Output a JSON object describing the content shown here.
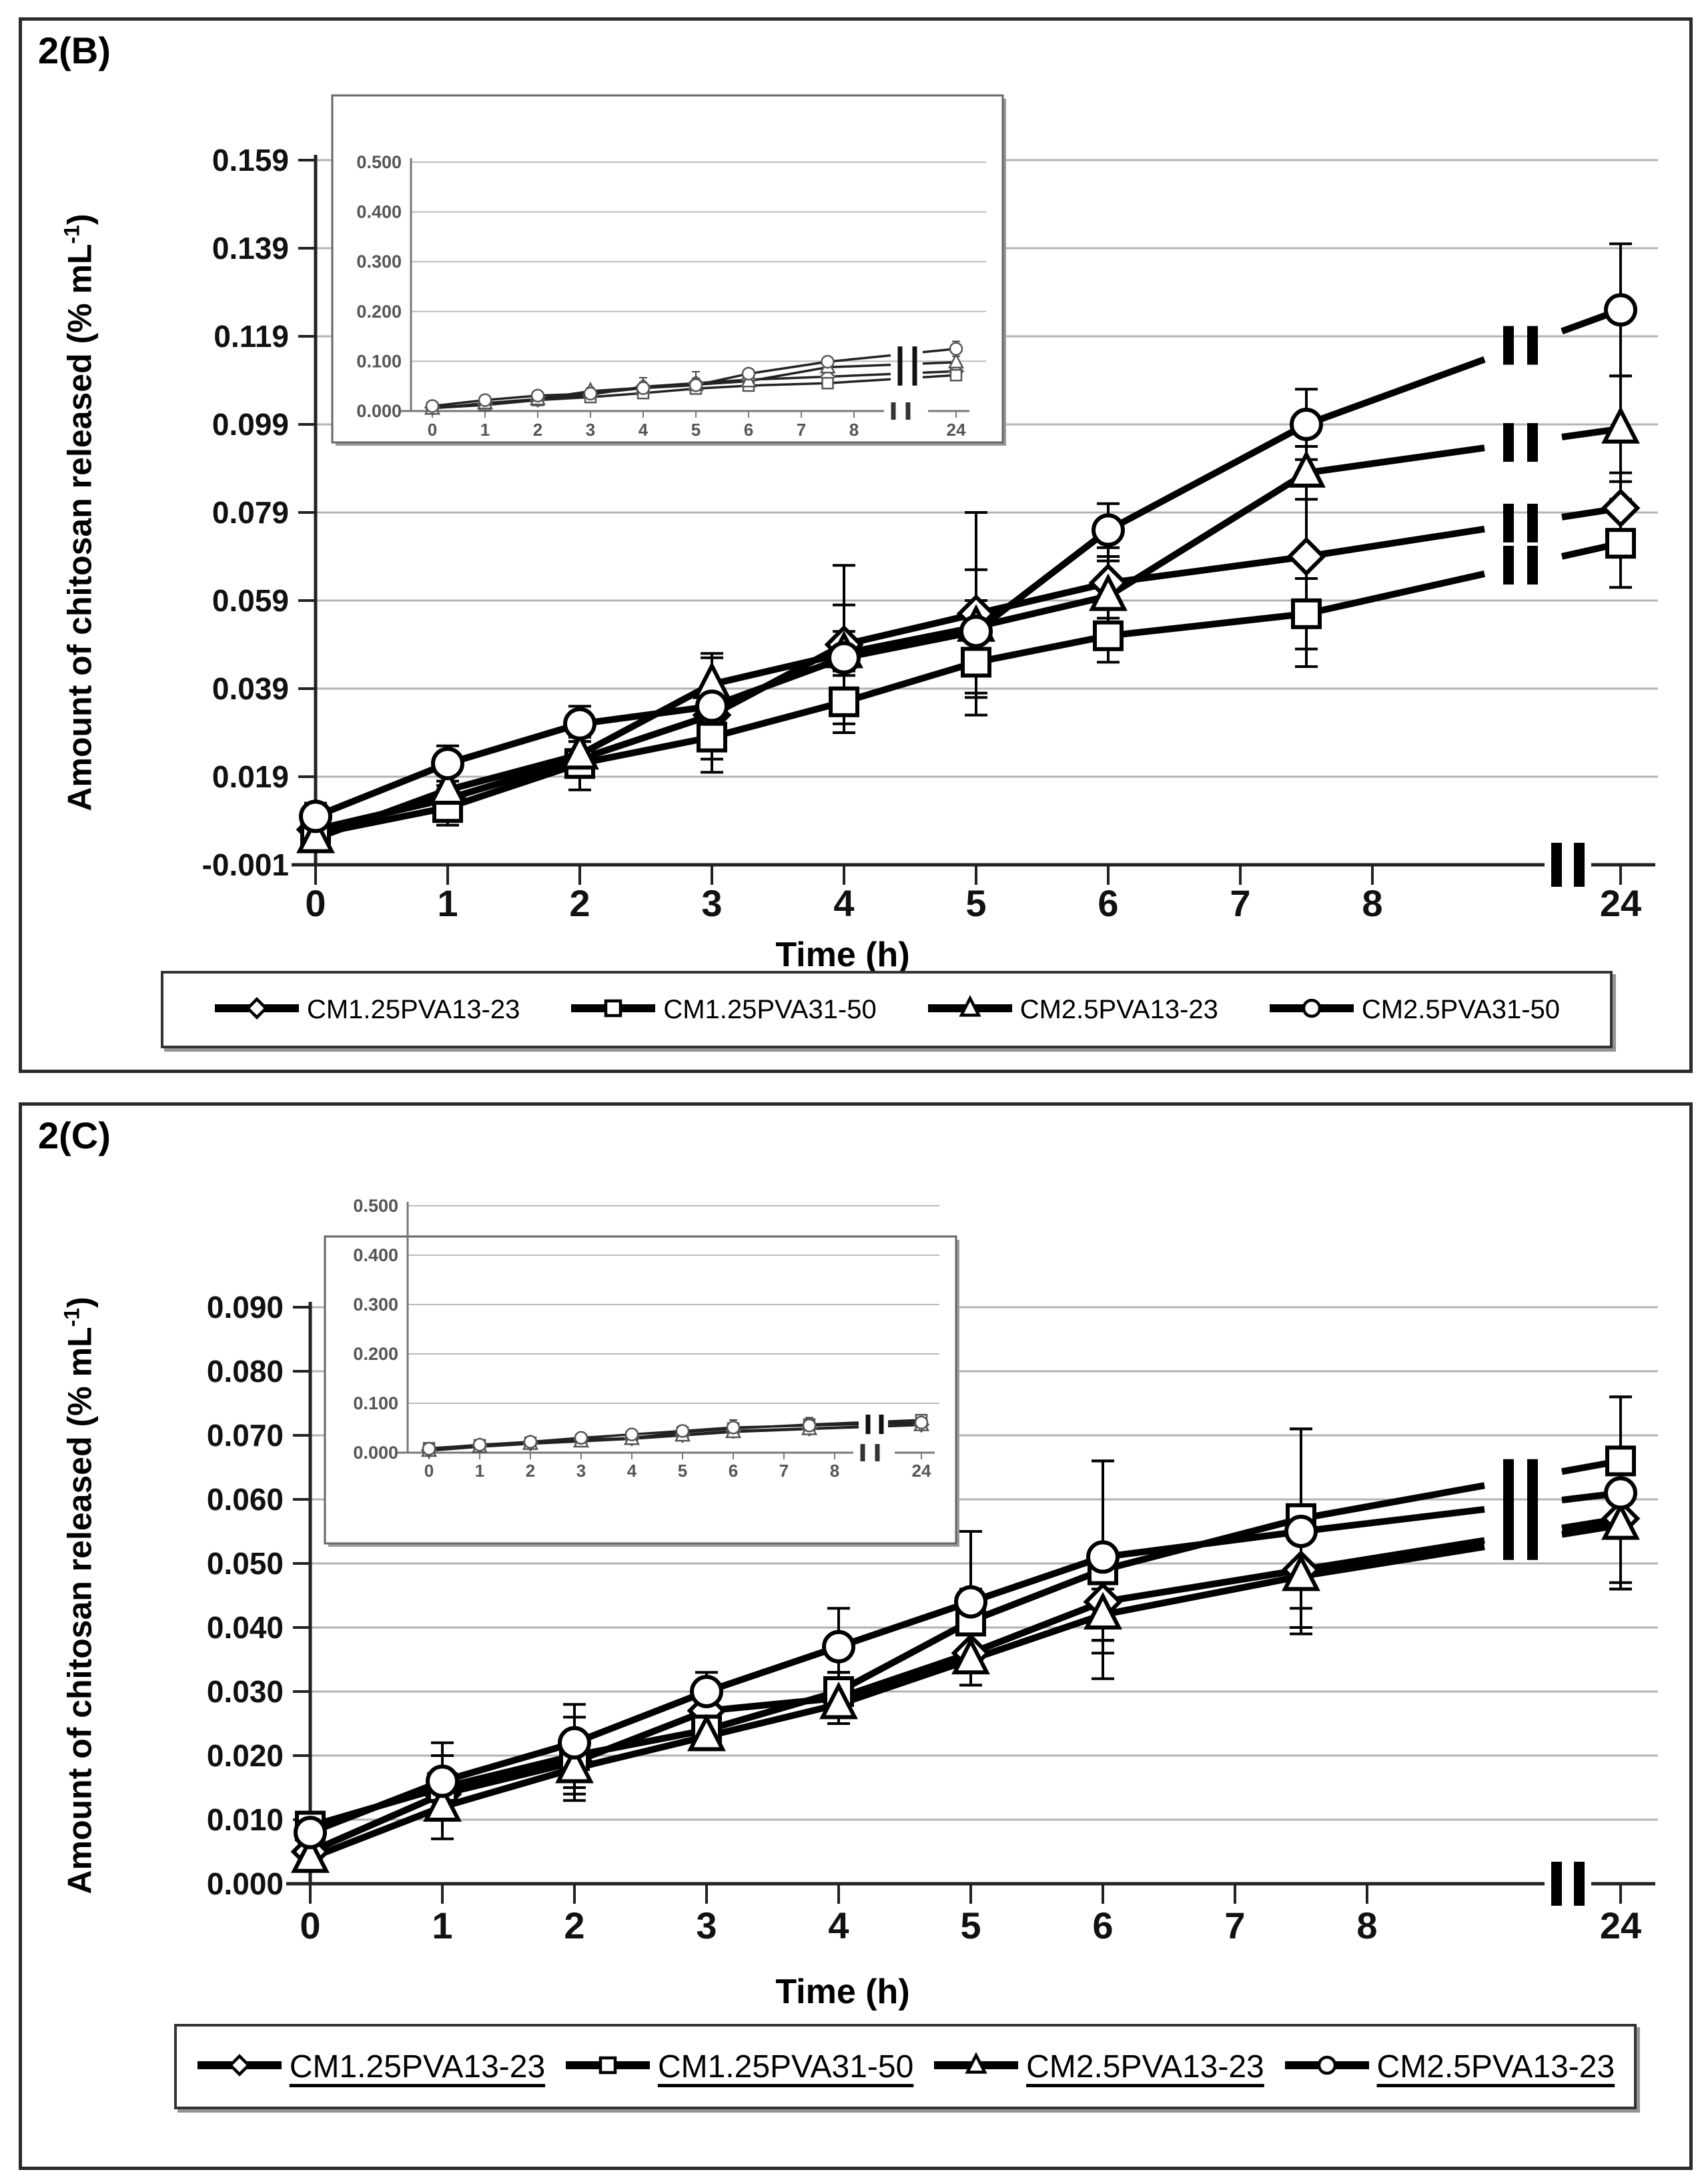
{
  "chart_data": [
    {
      "type": "line",
      "title": "2(B)",
      "xlabel": "Time (h)",
      "ylabel_prefix": "Amount of chitosan released (% mL",
      "ylabel_sup": "-1",
      "ylabel_suffix": ")",
      "x": [
        0,
        1,
        2,
        3,
        4,
        5,
        6,
        7.5,
        24
      ],
      "x_tick_labels": [
        "0",
        "1",
        "2",
        "3",
        "4",
        "5",
        "6",
        "7",
        "8",
        "24"
      ],
      "x_axis_break": true,
      "ylim": [
        -0.001,
        0.159
      ],
      "y_tick_labels": [
        "-0.001",
        "0.019",
        "0.039",
        "0.059",
        "0.079",
        "0.099",
        "0.119",
        "0.139",
        "0.159"
      ],
      "grid": true,
      "legend_position": "bottom",
      "series": [
        {
          "name": "CM1.25PVA13-23",
          "marker": "diamond",
          "values": [
            0.007,
            0.014,
            0.023,
            0.033,
            0.049,
            0.056,
            0.063,
            0.069,
            0.08
          ],
          "errors": [
            0.002,
            0.003,
            0.004,
            0.005,
            0.018,
            0.023,
            0.008,
            0.025,
            0.008
          ]
        },
        {
          "name": "CM1.25PVA31-50",
          "marker": "square",
          "values": [
            0.006,
            0.012,
            0.022,
            0.028,
            0.036,
            0.045,
            0.051,
            0.056,
            0.072
          ],
          "errors": [
            0.002,
            0.004,
            0.006,
            0.008,
            0.007,
            0.008,
            0.006,
            0.008,
            0.01
          ]
        },
        {
          "name": "CM2.5PVA13-23",
          "marker": "triangle",
          "values": [
            0.005,
            0.016,
            0.024,
            0.04,
            0.047,
            0.053,
            0.06,
            0.088,
            0.098
          ],
          "errors": [
            0.003,
            0.004,
            0.004,
            0.006,
            0.005,
            0.006,
            0.008,
            0.006,
            0.012
          ]
        },
        {
          "name": "CM2.5PVA31-50",
          "marker": "circle",
          "values": [
            0.01,
            0.022,
            0.031,
            0.035,
            0.046,
            0.052,
            0.075,
            0.099,
            0.125
          ],
          "errors": [
            0.003,
            0.004,
            0.004,
            0.012,
            0.012,
            0.014,
            0.006,
            0.008,
            0.015
          ]
        }
      ],
      "inset": {
        "ylim": [
          0.0,
          0.5
        ],
        "y_tick_labels": [
          "0.000",
          "0.100",
          "0.200",
          "0.300",
          "0.400",
          "0.500"
        ],
        "x_tick_labels": [
          "0",
          "1",
          "2",
          "3",
          "4",
          "5",
          "6",
          "7",
          "8",
          "24"
        ]
      }
    },
    {
      "type": "line",
      "title": "2(C)",
      "xlabel": "Time (h)",
      "ylabel_prefix": "Amount of chitosan released (% mL",
      "ylabel_sup": "-1",
      "ylabel_suffix": ")",
      "x": [
        0,
        1,
        2,
        3,
        4,
        5,
        6,
        7.5,
        24
      ],
      "x_tick_labels": [
        "0",
        "1",
        "2",
        "3",
        "4",
        "5",
        "6",
        "7",
        "8",
        "24"
      ],
      "x_axis_break": true,
      "ylim": [
        0.0,
        0.09
      ],
      "y_tick_labels": [
        "0.000",
        "0.010",
        "0.020",
        "0.030",
        "0.040",
        "0.050",
        "0.060",
        "0.070",
        "0.080",
        "0.090"
      ],
      "grid": true,
      "legend_position": "bottom",
      "legend_underlined": true,
      "series": [
        {
          "name": "CM1.25PVA13-23",
          "marker": "diamond",
          "values": [
            0.005,
            0.014,
            0.019,
            0.027,
            0.029,
            0.036,
            0.044,
            0.049,
            0.057
          ],
          "errors": [
            0.002,
            0.003,
            0.004,
            0.003,
            0.004,
            0.005,
            0.006,
            0.009,
            0.01
          ]
        },
        {
          "name": "CM1.25PVA31-50",
          "marker": "square",
          "values": [
            0.009,
            0.015,
            0.02,
            0.024,
            0.03,
            0.041,
            0.049,
            0.057,
            0.066
          ],
          "errors": [
            0.002,
            0.005,
            0.006,
            0.003,
            0.003,
            0.005,
            0.017,
            0.014,
            0.01
          ]
        },
        {
          "name": "CM2.5PVA13-23",
          "marker": "triangle",
          "values": [
            0.004,
            0.012,
            0.018,
            0.023,
            0.028,
            0.035,
            0.042,
            0.048,
            0.056
          ],
          "errors": [
            0.002,
            0.005,
            0.005,
            0.002,
            0.003,
            0.004,
            0.004,
            0.008,
            0.01
          ]
        },
        {
          "name": "CM2.5PVA13-23",
          "marker": "circle",
          "values": [
            0.008,
            0.016,
            0.022,
            0.03,
            0.037,
            0.044,
            0.051,
            0.055,
            0.061
          ],
          "errors": [
            0.003,
            0.006,
            0.006,
            0.003,
            0.006,
            0.011,
            0.015,
            0.016,
            0.015
          ]
        }
      ],
      "inset": {
        "ylim": [
          0.0,
          0.5
        ],
        "y_tick_labels": [
          "0.000",
          "0.100",
          "0.200",
          "0.300",
          "0.400",
          "0.500"
        ],
        "x_tick_labels": [
          "0",
          "1",
          "2",
          "3",
          "4",
          "5",
          "6",
          "7",
          "8",
          "24"
        ]
      }
    }
  ]
}
